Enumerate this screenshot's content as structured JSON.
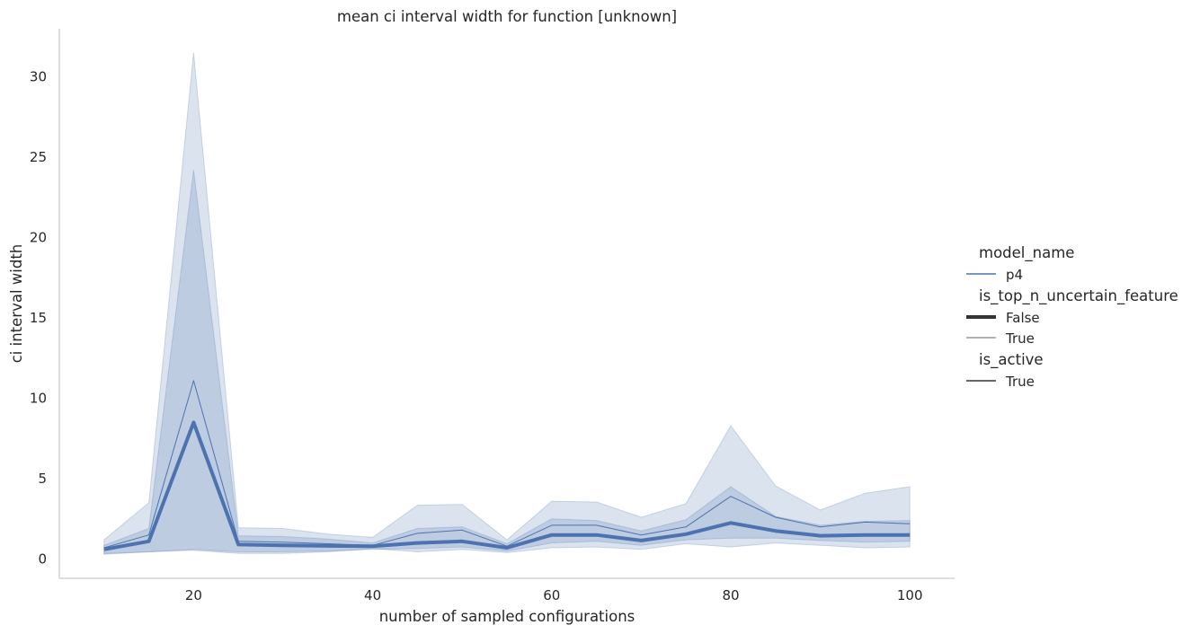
{
  "chart_data": {
    "type": "line",
    "title": "mean ci interval width for function [unknown]",
    "xlabel": "number of sampled configurations",
    "ylabel": "ci interval width",
    "xlim": [
      5,
      105
    ],
    "ylim": [
      -1.2,
      33
    ],
    "xticks": [
      20,
      40,
      60,
      80,
      100
    ],
    "yticks": [
      0,
      5,
      10,
      15,
      20,
      25,
      30
    ],
    "grid": false,
    "legend_placement": "right",
    "color": "#4c72b0",
    "x": [
      10,
      15,
      20,
      25,
      30,
      35,
      40,
      45,
      50,
      55,
      60,
      65,
      70,
      75,
      80,
      85,
      90,
      95,
      100
    ],
    "series": [
      {
        "label": "False",
        "values": [
          0.6,
          1.1,
          8.5,
          0.9,
          0.85,
          0.82,
          0.8,
          1.0,
          1.1,
          0.7,
          1.5,
          1.5,
          1.15,
          1.55,
          2.25,
          1.75,
          1.45,
          1.5,
          1.5
        ],
        "ci_lower": [
          0.35,
          0.45,
          0.6,
          0.45,
          0.45,
          0.5,
          0.6,
          0.65,
          0.75,
          0.5,
          1.0,
          1.1,
          0.85,
          1.2,
          1.3,
          1.3,
          1.15,
          1.05,
          1.1
        ],
        "ci_upper": [
          0.85,
          1.9,
          24.2,
          1.45,
          1.4,
          1.25,
          1.0,
          1.9,
          2.0,
          0.95,
          2.5,
          2.4,
          1.75,
          2.45,
          4.5,
          2.65,
          2.1,
          2.35,
          2.4
        ]
      },
      {
        "label": "True",
        "values": [
          0.7,
          1.5,
          11.1,
          1.1,
          1.05,
          0.95,
          0.85,
          1.6,
          1.8,
          0.8,
          2.1,
          2.1,
          1.5,
          2.0,
          3.9,
          2.6,
          2.0,
          2.3,
          2.2
        ],
        "ci_lower": [
          0.3,
          0.45,
          0.55,
          0.35,
          0.35,
          0.45,
          0.65,
          0.45,
          0.6,
          0.4,
          0.7,
          0.75,
          0.6,
          0.95,
          0.75,
          1.0,
          0.85,
          0.7,
          0.75
        ],
        "ci_upper": [
          1.2,
          3.5,
          31.5,
          1.95,
          1.9,
          1.55,
          1.35,
          3.35,
          3.4,
          1.2,
          3.6,
          3.55,
          2.6,
          3.45,
          8.3,
          4.55,
          3.05,
          4.1,
          4.5
        ]
      }
    ],
    "legend": {
      "sections": [
        {
          "title": "model_name",
          "items": [
            {
              "label": "p4",
              "style": "hue"
            }
          ]
        },
        {
          "title": "is_top_n_uncertain_feature",
          "items": [
            {
              "label": "False",
              "style": "thick"
            },
            {
              "label": "True",
              "style": "thin"
            }
          ]
        },
        {
          "title": "is_active",
          "items": [
            {
              "label": "True",
              "style": "plain"
            }
          ]
        }
      ]
    }
  }
}
